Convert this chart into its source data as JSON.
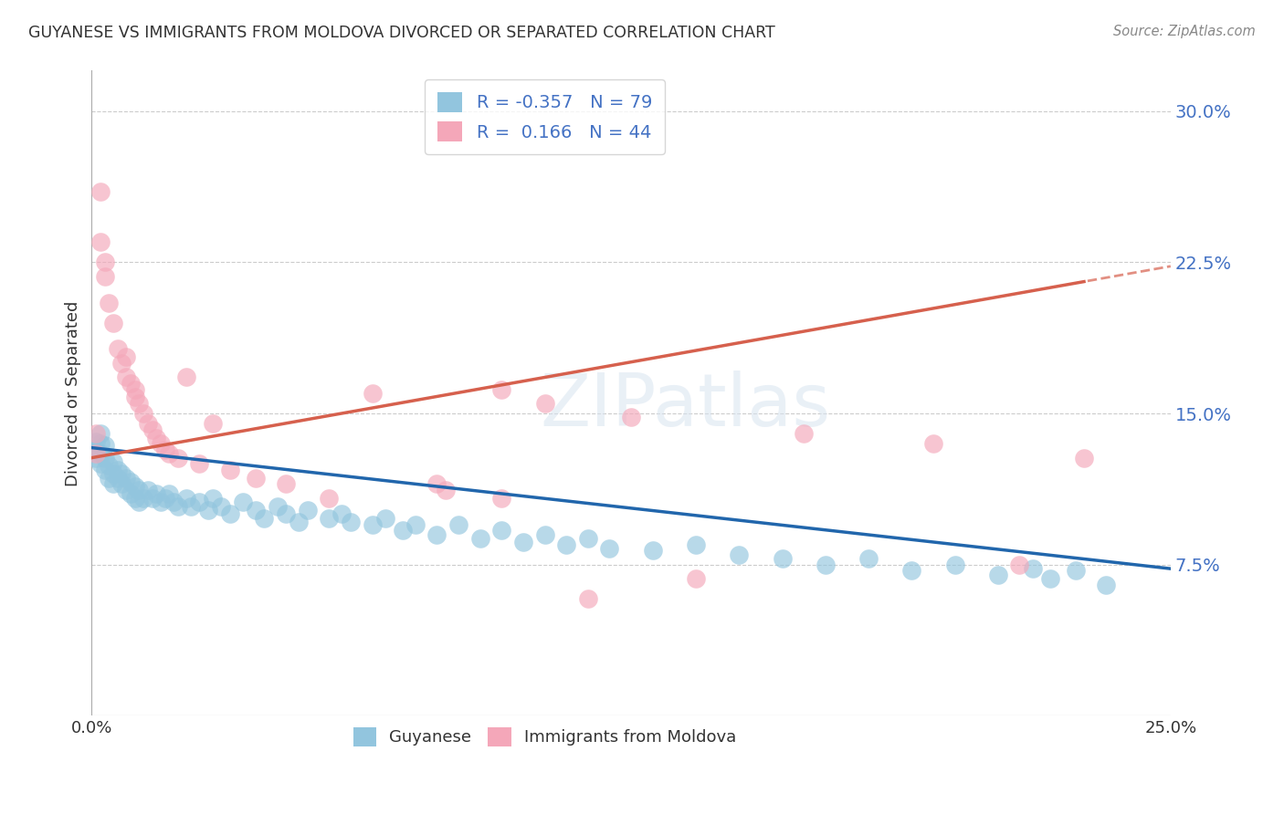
{
  "title": "GUYANESE VS IMMIGRANTS FROM MOLDOVA DIVORCED OR SEPARATED CORRELATION CHART",
  "source": "Source: ZipAtlas.com",
  "ylabel": "Divorced or Separated",
  "legend_label1": "Guyanese",
  "legend_label2": "Immigrants from Moldova",
  "r1": "-0.357",
  "n1": "79",
  "r2": "0.166",
  "n2": "44",
  "xlim": [
    0.0,
    0.25
  ],
  "ylim": [
    0.0,
    0.32
  ],
  "ytick_labels_right": [
    "7.5%",
    "15.0%",
    "22.5%",
    "30.0%"
  ],
  "ytick_vals_right": [
    0.075,
    0.15,
    0.225,
    0.3
  ],
  "color_blue": "#92c5de",
  "color_pink": "#f4a7b9",
  "trendline_blue": "#2166ac",
  "trendline_pink": "#d6604d",
  "background_color": "#ffffff",
  "watermark": "ZIPatlas",
  "blue_intercept": 0.133,
  "blue_slope": -0.24,
  "pink_intercept": 0.128,
  "pink_slope": 0.38,
  "blue_x": [
    0.001,
    0.001,
    0.001,
    0.002,
    0.002,
    0.002,
    0.002,
    0.003,
    0.003,
    0.003,
    0.004,
    0.004,
    0.005,
    0.005,
    0.005,
    0.006,
    0.006,
    0.007,
    0.007,
    0.008,
    0.008,
    0.009,
    0.009,
    0.01,
    0.01,
    0.011,
    0.011,
    0.012,
    0.013,
    0.014,
    0.015,
    0.016,
    0.017,
    0.018,
    0.019,
    0.02,
    0.022,
    0.023,
    0.025,
    0.027,
    0.028,
    0.03,
    0.032,
    0.035,
    0.038,
    0.04,
    0.043,
    0.045,
    0.048,
    0.05,
    0.055,
    0.058,
    0.06,
    0.065,
    0.068,
    0.072,
    0.075,
    0.08,
    0.085,
    0.09,
    0.095,
    0.1,
    0.105,
    0.11,
    0.115,
    0.12,
    0.13,
    0.14,
    0.15,
    0.16,
    0.17,
    0.18,
    0.19,
    0.2,
    0.21,
    0.218,
    0.222,
    0.228,
    0.235
  ],
  "blue_y": [
    0.128,
    0.132,
    0.136,
    0.125,
    0.13,
    0.135,
    0.14,
    0.122,
    0.128,
    0.134,
    0.118,
    0.124,
    0.115,
    0.12,
    0.126,
    0.118,
    0.122,
    0.115,
    0.12,
    0.112,
    0.118,
    0.11,
    0.116,
    0.108,
    0.114,
    0.106,
    0.112,
    0.108,
    0.112,
    0.108,
    0.11,
    0.106,
    0.108,
    0.11,
    0.106,
    0.104,
    0.108,
    0.104,
    0.106,
    0.102,
    0.108,
    0.104,
    0.1,
    0.106,
    0.102,
    0.098,
    0.104,
    0.1,
    0.096,
    0.102,
    0.098,
    0.1,
    0.096,
    0.095,
    0.098,
    0.092,
    0.095,
    0.09,
    0.095,
    0.088,
    0.092,
    0.086,
    0.09,
    0.085,
    0.088,
    0.083,
    0.082,
    0.085,
    0.08,
    0.078,
    0.075,
    0.078,
    0.072,
    0.075,
    0.07,
    0.073,
    0.068,
    0.072,
    0.065
  ],
  "pink_x": [
    0.001,
    0.001,
    0.002,
    0.002,
    0.003,
    0.003,
    0.004,
    0.005,
    0.006,
    0.007,
    0.008,
    0.008,
    0.009,
    0.01,
    0.01,
    0.011,
    0.012,
    0.013,
    0.014,
    0.015,
    0.016,
    0.017,
    0.018,
    0.02,
    0.022,
    0.025,
    0.028,
    0.032,
    0.038,
    0.045,
    0.055,
    0.065,
    0.08,
    0.095,
    0.115,
    0.082,
    0.095,
    0.105,
    0.125,
    0.14,
    0.165,
    0.195,
    0.215,
    0.23
  ],
  "pink_y": [
    0.13,
    0.14,
    0.26,
    0.235,
    0.218,
    0.225,
    0.205,
    0.195,
    0.182,
    0.175,
    0.168,
    0.178,
    0.165,
    0.158,
    0.162,
    0.155,
    0.15,
    0.145,
    0.142,
    0.138,
    0.135,
    0.132,
    0.13,
    0.128,
    0.168,
    0.125,
    0.145,
    0.122,
    0.118,
    0.115,
    0.108,
    0.16,
    0.115,
    0.162,
    0.058,
    0.112,
    0.108,
    0.155,
    0.148,
    0.068,
    0.14,
    0.135,
    0.075,
    0.128
  ]
}
